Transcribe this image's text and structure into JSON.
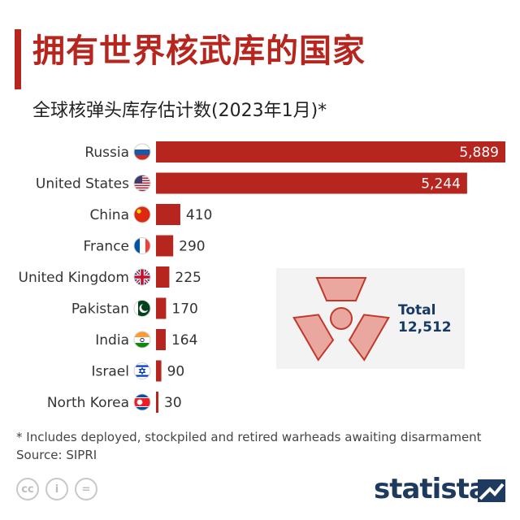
{
  "title": "拥有世界核武库的国家",
  "subtitle": "全球核弹头库存估计数(2023年1月)*",
  "total": {
    "label": "Total",
    "value": "12,512"
  },
  "footnote": "* Includes deployed, stockpiled and retired warheads awaiting disarmament",
  "source": "Source: SIPRI",
  "brand": "statista",
  "cc_icons": [
    "cc",
    "i",
    "="
  ],
  "colors": {
    "accent": "#b7261e",
    "bar": "#b7261e",
    "brand": "#1e3a5f",
    "radiation": "#c0392b"
  },
  "chart_data": {
    "type": "bar",
    "orientation": "horizontal",
    "categories": [
      "Russia",
      "United States",
      "China",
      "France",
      "United Kingdom",
      "Pakistan",
      "India",
      "Israel",
      "North Korea"
    ],
    "values": [
      5889,
      5244,
      410,
      290,
      225,
      170,
      164,
      90,
      30
    ],
    "value_labels": [
      "5,889",
      "5,244",
      "410",
      "290",
      "225",
      "170",
      "164",
      "90",
      "30"
    ],
    "flags": [
      "flag-russia",
      "flag-united-states",
      "flag-china",
      "flag-france",
      "flag-united-kingdom",
      "flag-pakistan",
      "flag-india",
      "flag-israel",
      "flag-north-korea"
    ],
    "xlim": [
      0,
      5889
    ],
    "grid": false
  }
}
